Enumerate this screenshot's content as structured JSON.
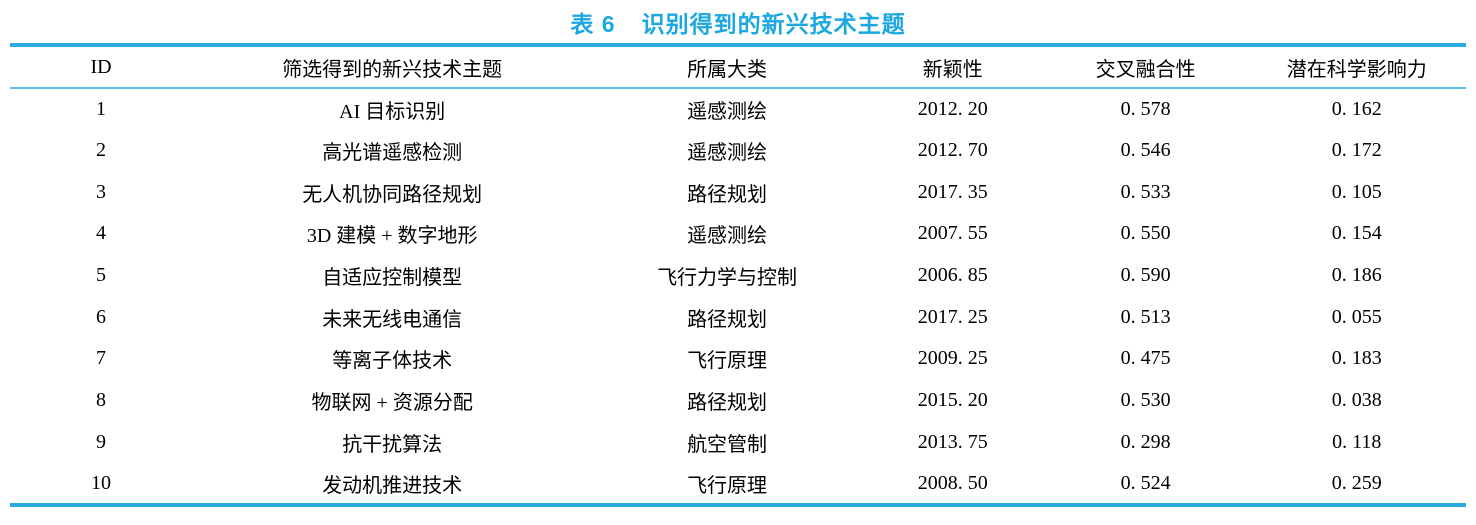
{
  "title": {
    "label": "表 6",
    "text": "识别得到的新兴技术主题"
  },
  "colors": {
    "accent": "#1ba7e0",
    "rule_heavy": "#2aace3",
    "rule_light": "#5cc2ea",
    "text": "#000000",
    "background": "#ffffff"
  },
  "table": {
    "columns": [
      {
        "key": "id",
        "label": "ID"
      },
      {
        "key": "topic",
        "label": "筛选得到的新兴技术主题"
      },
      {
        "key": "category",
        "label": "所属大类"
      },
      {
        "key": "novelty",
        "label": "新颖性"
      },
      {
        "key": "cross",
        "label": "交叉融合性"
      },
      {
        "key": "impact",
        "label": "潜在科学影响力"
      }
    ],
    "rows": [
      [
        "1",
        "AI 目标识别",
        "遥感测绘",
        "2012. 20",
        "0. 578",
        "0. 162"
      ],
      [
        "2",
        "高光谱遥感检测",
        "遥感测绘",
        "2012. 70",
        "0. 546",
        "0. 172"
      ],
      [
        "3",
        "无人机协同路径规划",
        "路径规划",
        "2017. 35",
        "0. 533",
        "0. 105"
      ],
      [
        "4",
        "3D 建模 + 数字地形",
        "遥感测绘",
        "2007. 55",
        "0. 550",
        "0. 154"
      ],
      [
        "5",
        "自适应控制模型",
        "飞行力学与控制",
        "2006. 85",
        "0. 590",
        "0. 186"
      ],
      [
        "6",
        "未来无线电通信",
        "路径规划",
        "2017. 25",
        "0. 513",
        "0. 055"
      ],
      [
        "7",
        "等离子体技术",
        "飞行原理",
        "2009. 25",
        "0. 475",
        "0. 183"
      ],
      [
        "8",
        "物联网 + 资源分配",
        "路径规划",
        "2015. 20",
        "0. 530",
        "0. 038"
      ],
      [
        "9",
        "抗干扰算法",
        "航空管制",
        "2013. 75",
        "0. 298",
        "0. 118"
      ],
      [
        "10",
        "发动机推进技术",
        "飞行原理",
        "2008. 50",
        "0. 524",
        "0. 259"
      ]
    ]
  }
}
